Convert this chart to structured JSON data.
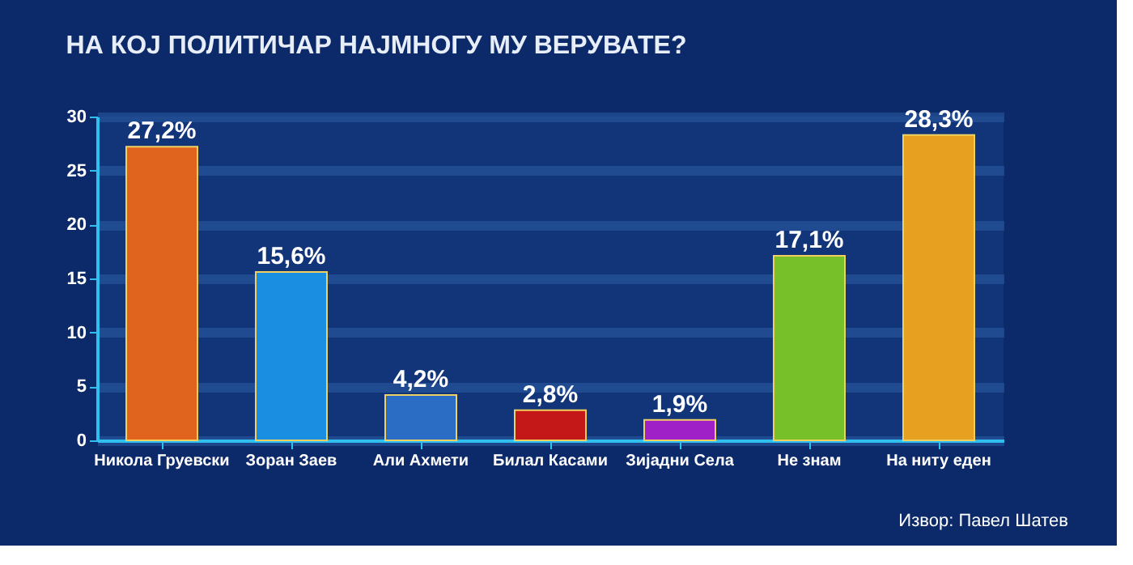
{
  "chart_data": {
    "type": "bar",
    "title": "НА КОЈ ПОЛИТИЧАР НАЈМНОГУ МУ ВЕРУВАТЕ?",
    "categories": [
      "Никола Груевски",
      "Зоран Заев",
      "Али Ахмети",
      "Билал Касами",
      "Зијадни Села",
      "Не знам",
      "На ниту еден"
    ],
    "values": [
      27.2,
      15.6,
      4.2,
      2.8,
      1.9,
      17.1,
      28.3
    ],
    "colors": [
      "#e0631e",
      "#1a8ee0",
      "#2b6cc4",
      "#c41818",
      "#a020c8",
      "#78c02a",
      "#e8a020"
    ],
    "value_labels": [
      "27,2%",
      "15,6%",
      "4,2%",
      "2,8%",
      "1,9%",
      "17,1%",
      "28,3%"
    ],
    "ylim": [
      0,
      30
    ],
    "yticks": [
      0,
      5,
      10,
      15,
      20,
      25,
      30
    ],
    "grid": "y",
    "annotations": [
      "Извор: Павел Шатев"
    ]
  }
}
